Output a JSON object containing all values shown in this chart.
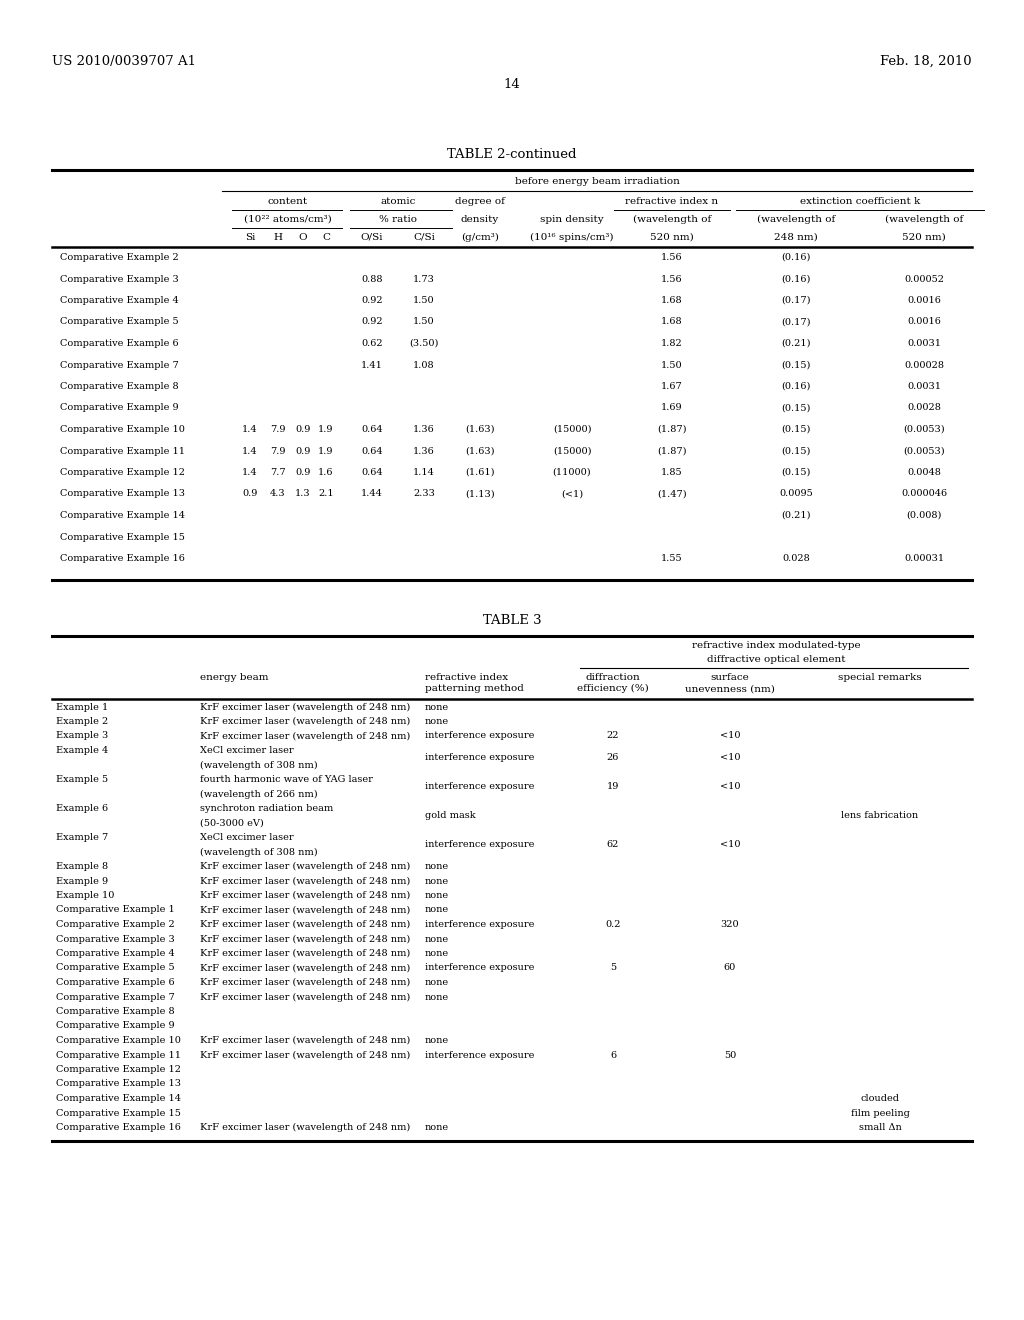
{
  "patent_left": "US 2010/0039707 A1",
  "patent_right": "Feb. 18, 2010",
  "page_number": "14",
  "table2_title": "TABLE 2-continued",
  "table2_header_main": "before energy beam irradiation",
  "table2_rows": [
    {
      "label": "Comparative Example 2",
      "Si": "",
      "H": "",
      "O": "",
      "C": "",
      "OSi": "",
      "CSi": "",
      "density": "",
      "spin": "",
      "n520": "1.56",
      "k248": "(0.16)",
      "k520": ""
    },
    {
      "label": "Comparative Example 3",
      "Si": "",
      "H": "",
      "O": "",
      "C": "",
      "OSi": "0.88",
      "CSi": "1.73",
      "density": "",
      "spin": "",
      "n520": "1.56",
      "k248": "(0.16)",
      "k520": "0.00052"
    },
    {
      "label": "Comparative Example 4",
      "Si": "",
      "H": "",
      "O": "",
      "C": "",
      "OSi": "0.92",
      "CSi": "1.50",
      "density": "",
      "spin": "",
      "n520": "1.68",
      "k248": "(0.17)",
      "k520": "0.0016"
    },
    {
      "label": "Comparative Example 5",
      "Si": "",
      "H": "",
      "O": "",
      "C": "",
      "OSi": "0.92",
      "CSi": "1.50",
      "density": "",
      "spin": "",
      "n520": "1.68",
      "k248": "(0.17)",
      "k520": "0.0016"
    },
    {
      "label": "Comparative Example 6",
      "Si": "",
      "H": "",
      "O": "",
      "C": "",
      "OSi": "0.62",
      "CSi": "(3.50)",
      "density": "",
      "spin": "",
      "n520": "1.82",
      "k248": "(0.21)",
      "k520": "0.0031"
    },
    {
      "label": "Comparative Example 7",
      "Si": "",
      "H": "",
      "O": "",
      "C": "",
      "OSi": "1.41",
      "CSi": "1.08",
      "density": "",
      "spin": "",
      "n520": "1.50",
      "k248": "(0.15)",
      "k520": "0.00028"
    },
    {
      "label": "Comparative Example 8",
      "Si": "",
      "H": "",
      "O": "",
      "C": "",
      "OSi": "",
      "CSi": "",
      "density": "",
      "spin": "",
      "n520": "1.67",
      "k248": "(0.16)",
      "k520": "0.0031"
    },
    {
      "label": "Comparative Example 9",
      "Si": "",
      "H": "",
      "O": "",
      "C": "",
      "OSi": "",
      "CSi": "",
      "density": "",
      "spin": "",
      "n520": "1.69",
      "k248": "(0.15)",
      "k520": "0.0028"
    },
    {
      "label": "Comparative Example 10",
      "Si": "1.4",
      "H": "7.9",
      "O": "0.9",
      "C": "1.9",
      "OSi": "0.64",
      "CSi": "1.36",
      "density": "(1.63)",
      "spin": "(15000)",
      "n520": "(1.87)",
      "k248": "(0.15)",
      "k520": "(0.0053)"
    },
    {
      "label": "Comparative Example 11",
      "Si": "1.4",
      "H": "7.9",
      "O": "0.9",
      "C": "1.9",
      "OSi": "0.64",
      "CSi": "1.36",
      "density": "(1.63)",
      "spin": "(15000)",
      "n520": "(1.87)",
      "k248": "(0.15)",
      "k520": "(0.0053)"
    },
    {
      "label": "Comparative Example 12",
      "Si": "1.4",
      "H": "7.7",
      "O": "0.9",
      "C": "1.6",
      "OSi": "0.64",
      "CSi": "1.14",
      "density": "(1.61)",
      "spin": "(11000)",
      "n520": "1.85",
      "k248": "(0.15)",
      "k520": "0.0048"
    },
    {
      "label": "Comparative Example 13",
      "Si": "0.9",
      "H": "4.3",
      "O": "1.3",
      "C": "2.1",
      "OSi": "1.44",
      "CSi": "2.33",
      "density": "(1.13)",
      "spin": "(<1)",
      "n520": "(1.47)",
      "k248": "0.0095",
      "k520": "0.000046"
    },
    {
      "label": "Comparative Example 14",
      "Si": "",
      "H": "",
      "O": "",
      "C": "",
      "OSi": "",
      "CSi": "",
      "density": "",
      "spin": "",
      "n520": "",
      "k248": "(0.21)",
      "k520": "(0.008)"
    },
    {
      "label": "Comparative Example 15",
      "Si": "",
      "H": "",
      "O": "",
      "C": "",
      "OSi": "",
      "CSi": "",
      "density": "",
      "spin": "",
      "n520": "",
      "k248": "",
      "k520": ""
    },
    {
      "label": "Comparative Example 16",
      "Si": "",
      "H": "",
      "O": "",
      "C": "",
      "OSi": "",
      "CSi": "",
      "density": "",
      "spin": "",
      "n520": "1.55",
      "k248": "0.028",
      "k520": "0.00031"
    }
  ],
  "table3_title": "TABLE 3",
  "table3_rows": [
    {
      "label": "Example 1",
      "energy_beam": "KrF excimer laser (wavelength of 248 nm)",
      "energy_beam2": "",
      "patterning": "none",
      "efficiency": "",
      "unevenness": "",
      "remarks": ""
    },
    {
      "label": "Example 2",
      "energy_beam": "KrF excimer laser (wavelength of 248 nm)",
      "energy_beam2": "",
      "patterning": "none",
      "efficiency": "",
      "unevenness": "",
      "remarks": ""
    },
    {
      "label": "Example 3",
      "energy_beam": "KrF excimer laser (wavelength of 248 nm)",
      "energy_beam2": "",
      "patterning": "interference exposure",
      "efficiency": "22",
      "unevenness": "<10",
      "remarks": ""
    },
    {
      "label": "Example 4",
      "energy_beam": "XeCl excimer laser",
      "energy_beam2": "(wavelength of 308 nm)",
      "patterning": "interference exposure",
      "efficiency": "26",
      "unevenness": "<10",
      "remarks": ""
    },
    {
      "label": "Example 5",
      "energy_beam": "fourth harmonic wave of YAG laser",
      "energy_beam2": "(wavelength of 266 nm)",
      "patterning": "interference exposure",
      "efficiency": "19",
      "unevenness": "<10",
      "remarks": ""
    },
    {
      "label": "Example 6",
      "energy_beam": "synchroton radiation beam",
      "energy_beam2": "(50-3000 eV)",
      "patterning": "gold mask",
      "efficiency": "",
      "unevenness": "",
      "remarks": "lens fabrication"
    },
    {
      "label": "Example 7",
      "energy_beam": "XeCl excimer laser",
      "energy_beam2": "(wavelength of 308 nm)",
      "patterning": "interference exposure",
      "efficiency": "62",
      "unevenness": "<10",
      "remarks": ""
    },
    {
      "label": "Example 8",
      "energy_beam": "KrF excimer laser (wavelength of 248 nm)",
      "energy_beam2": "",
      "patterning": "none",
      "efficiency": "",
      "unevenness": "",
      "remarks": ""
    },
    {
      "label": "Example 9",
      "energy_beam": "KrF excimer laser (wavelength of 248 nm)",
      "energy_beam2": "",
      "patterning": "none",
      "efficiency": "",
      "unevenness": "",
      "remarks": ""
    },
    {
      "label": "Example 10",
      "energy_beam": "KrF excimer laser (wavelength of 248 nm)",
      "energy_beam2": "",
      "patterning": "none",
      "efficiency": "",
      "unevenness": "",
      "remarks": ""
    },
    {
      "label": "Comparative Example 1",
      "energy_beam": "KrF excimer laser (wavelength of 248 nm)",
      "energy_beam2": "",
      "patterning": "none",
      "efficiency": "",
      "unevenness": "",
      "remarks": ""
    },
    {
      "label": "Comparative Example 2",
      "energy_beam": "KrF excimer laser (wavelength of 248 nm)",
      "energy_beam2": "",
      "patterning": "interference exposure",
      "efficiency": "0.2",
      "unevenness": "320",
      "remarks": ""
    },
    {
      "label": "Comparative Example 3",
      "energy_beam": "KrF excimer laser (wavelength of 248 nm)",
      "energy_beam2": "",
      "patterning": "none",
      "efficiency": "",
      "unevenness": "",
      "remarks": ""
    },
    {
      "label": "Comparative Example 4",
      "energy_beam": "KrF excimer laser (wavelength of 248 nm)",
      "energy_beam2": "",
      "patterning": "none",
      "efficiency": "",
      "unevenness": "",
      "remarks": ""
    },
    {
      "label": "Comparative Example 5",
      "energy_beam": "KrF excimer laser (wavelength of 248 nm)",
      "energy_beam2": "",
      "patterning": "interference exposure",
      "efficiency": "5",
      "unevenness": "60",
      "remarks": ""
    },
    {
      "label": "Comparative Example 6",
      "energy_beam": "KrF excimer laser (wavelength of 248 nm)",
      "energy_beam2": "",
      "patterning": "none",
      "efficiency": "",
      "unevenness": "",
      "remarks": ""
    },
    {
      "label": "Comparative Example 7",
      "energy_beam": "KrF excimer laser (wavelength of 248 nm)",
      "energy_beam2": "",
      "patterning": "none",
      "efficiency": "",
      "unevenness": "",
      "remarks": ""
    },
    {
      "label": "Comparative Example 8",
      "energy_beam": "",
      "energy_beam2": "",
      "patterning": "",
      "efficiency": "",
      "unevenness": "",
      "remarks": ""
    },
    {
      "label": "Comparative Example 9",
      "energy_beam": "",
      "energy_beam2": "",
      "patterning": "",
      "efficiency": "",
      "unevenness": "",
      "remarks": ""
    },
    {
      "label": "Comparative Example 10",
      "energy_beam": "KrF excimer laser (wavelength of 248 nm)",
      "energy_beam2": "",
      "patterning": "none",
      "efficiency": "",
      "unevenness": "",
      "remarks": ""
    },
    {
      "label": "Comparative Example 11",
      "energy_beam": "KrF excimer laser (wavelength of 248 nm)",
      "energy_beam2": "",
      "patterning": "interference exposure",
      "efficiency": "6",
      "unevenness": "50",
      "remarks": ""
    },
    {
      "label": "Comparative Example 12",
      "energy_beam": "",
      "energy_beam2": "",
      "patterning": "",
      "efficiency": "",
      "unevenness": "",
      "remarks": ""
    },
    {
      "label": "Comparative Example 13",
      "energy_beam": "",
      "energy_beam2": "",
      "patterning": "",
      "efficiency": "",
      "unevenness": "",
      "remarks": ""
    },
    {
      "label": "Comparative Example 14",
      "energy_beam": "",
      "energy_beam2": "",
      "patterning": "",
      "efficiency": "",
      "unevenness": "",
      "remarks": "clouded"
    },
    {
      "label": "Comparative Example 15",
      "energy_beam": "",
      "energy_beam2": "",
      "patterning": "",
      "efficiency": "",
      "unevenness": "",
      "remarks": "film peeling"
    },
    {
      "label": "Comparative Example 16",
      "energy_beam": "KrF excimer laser (wavelength of 248 nm)",
      "energy_beam2": "",
      "patterning": "none",
      "efficiency": "",
      "unevenness": "",
      "remarks": "small Δn"
    }
  ]
}
